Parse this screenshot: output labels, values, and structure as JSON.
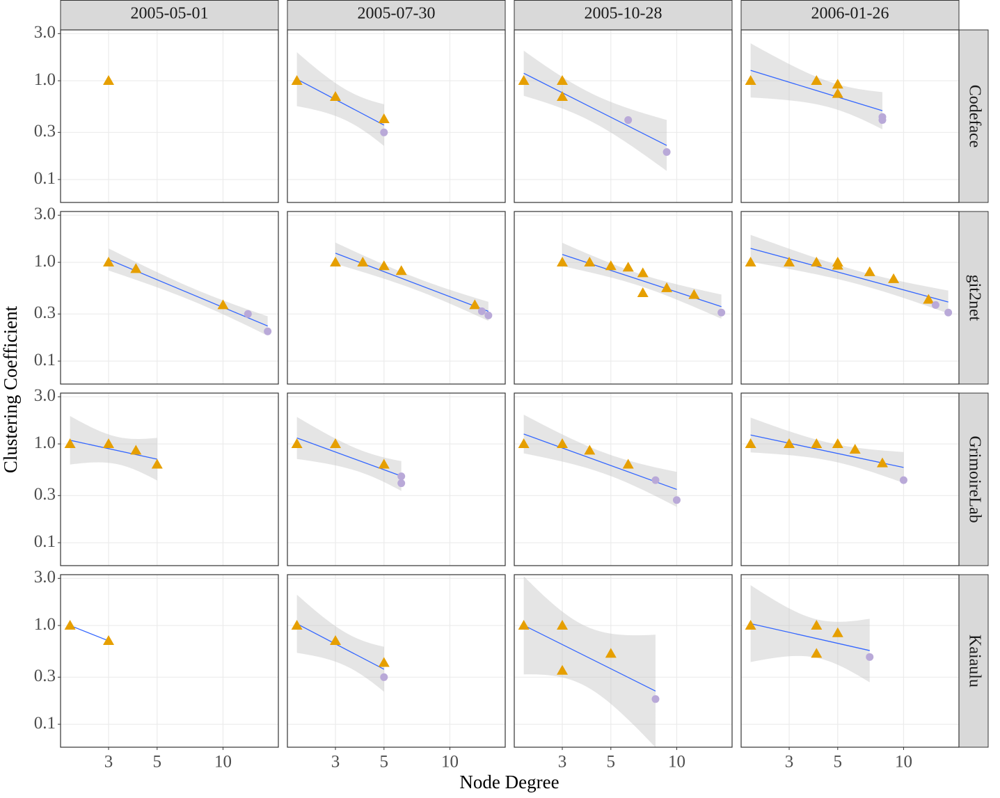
{
  "chart_data": {
    "type": "scatter",
    "xlabel": "Node Degree",
    "ylabel": "Clustering Coefficient",
    "xlog": true,
    "ylog": true,
    "grid": true,
    "smooth": "lm",
    "smooth_color": "#3366FF",
    "band_color": "#BEBEBE",
    "xlim": [
      1.81,
      17.9
    ],
    "ylim": [
      0.0586,
      3.27
    ],
    "xticks": [
      3,
      5,
      10
    ],
    "yticks": [
      0.1,
      0.3,
      {
        "value": 1,
        "label": "1.0"
      },
      {
        "value": 3,
        "label": "3.0"
      }
    ],
    "columns": [
      "2005-05-01",
      "2005-07-30",
      "2005-10-28",
      "2006-01-26"
    ],
    "rows": [
      "Codeface",
      "git2net",
      "GrimoireLab",
      "Kaiaulu"
    ],
    "panels": [
      [
        {
          "series": [
            {
              "marker": "triangle",
              "color": "#E69F00",
              "x": [
                3
              ],
              "values": [
                1.0
              ]
            }
          ]
        },
        {
          "series": [
            {
              "marker": "triangle",
              "color": "#E69F00",
              "x": [
                2,
                3,
                5
              ],
              "values": [
                1.0,
                0.69,
                0.41
              ]
            },
            {
              "marker": "circle",
              "color": "#B9A9D8",
              "x": [
                5
              ],
              "values": [
                0.3
              ]
            }
          ]
        },
        {
          "series": [
            {
              "marker": "triangle",
              "color": "#E69F00",
              "x": [
                2,
                3,
                3
              ],
              "values": [
                1.0,
                1.0,
                0.69
              ]
            },
            {
              "marker": "circle",
              "color": "#B9A9D8",
              "x": [
                6,
                9
              ],
              "values": [
                0.4,
                0.19
              ]
            }
          ]
        },
        {
          "series": [
            {
              "marker": "triangle",
              "color": "#E69F00",
              "x": [
                2,
                4,
                5,
                5
              ],
              "values": [
                1.0,
                1.0,
                0.92,
                0.74
              ]
            },
            {
              "marker": "circle",
              "color": "#B9A9D8",
              "x": [
                8,
                8
              ],
              "values": [
                0.43,
                0.4
              ]
            }
          ]
        }
      ],
      [
        {
          "series": [
            {
              "marker": "triangle",
              "color": "#E69F00",
              "x": [
                3,
                4,
                10
              ],
              "values": [
                1.0,
                0.86,
                0.37
              ]
            },
            {
              "marker": "circle",
              "color": "#B9A9D8",
              "x": [
                13,
                16
              ],
              "values": [
                0.3,
                0.2
              ]
            }
          ]
        },
        {
          "series": [
            {
              "marker": "triangle",
              "color": "#E69F00",
              "x": [
                3,
                4,
                5,
                6,
                13
              ],
              "values": [
                1.0,
                1.0,
                0.92,
                0.82,
                0.37
              ]
            },
            {
              "marker": "circle",
              "color": "#B9A9D8",
              "x": [
                14,
                15
              ],
              "values": [
                0.32,
                0.29
              ]
            }
          ]
        },
        {
          "series": [
            {
              "marker": "triangle",
              "color": "#E69F00",
              "x": [
                3,
                4,
                5,
                6,
                7,
                7,
                9,
                12
              ],
              "values": [
                1.0,
                1.0,
                0.92,
                0.89,
                0.78,
                0.49,
                0.55,
                0.47
              ]
            },
            {
              "marker": "circle",
              "color": "#B9A9D8",
              "x": [
                16
              ],
              "values": [
                0.31
              ]
            }
          ]
        },
        {
          "series": [
            {
              "marker": "triangle",
              "color": "#E69F00",
              "x": [
                2,
                3,
                4,
                5,
                5,
                7,
                9,
                13
              ],
              "values": [
                1.0,
                1.0,
                1.0,
                1.0,
                0.93,
                0.8,
                0.68,
                0.42
              ]
            },
            {
              "marker": "circle",
              "color": "#B9A9D8",
              "x": [
                14,
                16
              ],
              "values": [
                0.37,
                0.31
              ]
            }
          ]
        }
      ],
      [
        {
          "series": [
            {
              "marker": "triangle",
              "color": "#E69F00",
              "x": [
                2,
                3,
                4,
                5
              ],
              "values": [
                1.0,
                1.0,
                0.86,
                0.62
              ]
            }
          ]
        },
        {
          "series": [
            {
              "marker": "triangle",
              "color": "#E69F00",
              "x": [
                2,
                3,
                5
              ],
              "values": [
                1.0,
                1.0,
                0.62
              ]
            },
            {
              "marker": "circle",
              "color": "#B9A9D8",
              "x": [
                6,
                6
              ],
              "values": [
                0.47,
                0.4
              ]
            }
          ]
        },
        {
          "series": [
            {
              "marker": "triangle",
              "color": "#E69F00",
              "x": [
                2,
                3,
                4,
                6
              ],
              "values": [
                1.0,
                1.0,
                0.86,
                0.62
              ]
            },
            {
              "marker": "circle",
              "color": "#B9A9D8",
              "x": [
                8,
                10
              ],
              "values": [
                0.43,
                0.27
              ]
            }
          ]
        },
        {
          "series": [
            {
              "marker": "triangle",
              "color": "#E69F00",
              "x": [
                2,
                3,
                4,
                5,
                6,
                8
              ],
              "values": [
                1.0,
                1.0,
                1.0,
                1.0,
                0.88,
                0.64
              ]
            },
            {
              "marker": "circle",
              "color": "#B9A9D8",
              "x": [
                10
              ],
              "values": [
                0.43
              ]
            }
          ]
        }
      ],
      [
        {
          "series": [
            {
              "marker": "triangle",
              "color": "#E69F00",
              "x": [
                2,
                3
              ],
              "values": [
                1.0,
                0.7
              ]
            }
          ]
        },
        {
          "series": [
            {
              "marker": "triangle",
              "color": "#E69F00",
              "x": [
                2,
                3,
                5
              ],
              "values": [
                1.0,
                0.7,
                0.42
              ]
            },
            {
              "marker": "circle",
              "color": "#B9A9D8",
              "x": [
                5
              ],
              "values": [
                0.3
              ]
            }
          ]
        },
        {
          "series": [
            {
              "marker": "triangle",
              "color": "#E69F00",
              "x": [
                2,
                3,
                3,
                5
              ],
              "values": [
                1.0,
                1.0,
                0.35,
                0.52
              ]
            },
            {
              "marker": "circle",
              "color": "#B9A9D8",
              "x": [
                8
              ],
              "values": [
                0.18
              ]
            }
          ]
        },
        {
          "series": [
            {
              "marker": "triangle",
              "color": "#E69F00",
              "x": [
                2,
                4,
                4,
                5
              ],
              "values": [
                1.0,
                1.0,
                0.52,
                0.84
              ]
            },
            {
              "marker": "circle",
              "color": "#B9A9D8",
              "x": [
                7
              ],
              "values": [
                0.48
              ]
            }
          ]
        }
      ]
    ]
  }
}
